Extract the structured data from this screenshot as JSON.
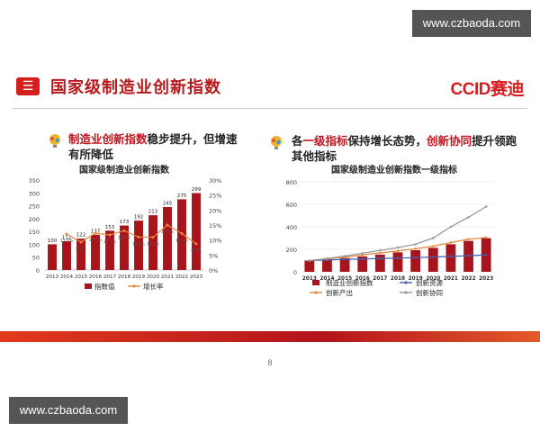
{
  "watermark": {
    "top": "www.czbaoda.com",
    "bottom": "www.czbaoda.com"
  },
  "header": {
    "badge": "☰",
    "title": "国家级制造业创新指数",
    "logo_text": "CCID",
    "logo_cn": "赛迪"
  },
  "left_point": {
    "hl": "制造业创新指数",
    "rest": "稳步提升，但增速",
    "line2": "有所降低"
  },
  "right_point": {
    "p1": "各",
    "hl1": "一级指标",
    "p2": "保持增长态势，",
    "hl2": "创新协同",
    "p3": "提升领跑",
    "line2": "其他指标"
  },
  "page_number": "8",
  "colors": {
    "red": "#c0141c",
    "bar_dark": "#a8141b",
    "orange": "#e6873a",
    "blue": "#3f5fb0",
    "gray": "#9a9a9a"
  },
  "chart_data": [
    {
      "type": "bar",
      "title": "国家级制造业创新指数",
      "categories": [
        "2013",
        "2014",
        "2015",
        "2016",
        "2017",
        "2018",
        "2019",
        "2020",
        "2021",
        "2022",
        "2023"
      ],
      "series": [
        {
          "name": "指数值",
          "type": "bar",
          "values": [
            100,
            112,
            122,
            137,
            153,
            173,
            192,
            213,
            245,
            275,
            299
          ]
        },
        {
          "name": "增长率",
          "type": "line",
          "axis": "right",
          "values": [
            null,
            12.0,
            9.3,
            12.3,
            11.7,
            13.1,
            11.0,
            10.9,
            15.0,
            12.2,
            8.7
          ]
        }
      ],
      "bar_labels": [
        "100",
        "112",
        "122",
        "137",
        "153",
        "173",
        "192",
        "213",
        "245",
        "275",
        "299"
      ],
      "line_labels": [
        "",
        "12.0%",
        "9.3%",
        "12.3%",
        "11.7%",
        "13.1%",
        "11.0%",
        "10.9%",
        "15.0%",
        "12.2%",
        "8.7%"
      ],
      "left_ticks": [
        "0",
        "50",
        "100",
        "150",
        "200",
        "250",
        "300",
        "350"
      ],
      "right_ticks": [
        "0%",
        "5%",
        "10%",
        "15%",
        "20%",
        "25%",
        "30%"
      ],
      "ylim": [
        0,
        350
      ],
      "y2lim": [
        0,
        30
      ],
      "legend": [
        "指数值",
        "增长率"
      ]
    },
    {
      "type": "bar",
      "title": "国家级制造业创新指数一级指标",
      "categories": [
        "2013",
        "2014",
        "2015",
        "2016",
        "2017",
        "2018",
        "2019",
        "2020",
        "2021",
        "2022",
        "2023"
      ],
      "series": [
        {
          "name": "制造业创新指数",
          "type": "bar",
          "values": [
            100,
            112,
            122,
            137,
            153,
            173,
            192,
            213,
            245,
            275,
            299
          ]
        },
        {
          "name": "创新资源",
          "type": "line",
          "values": [
            100,
            105,
            110,
            114,
            118,
            122,
            126,
            131,
            137,
            143,
            150
          ]
        },
        {
          "name": "创新产出",
          "type": "line",
          "values": [
            100,
            115,
            130,
            150,
            168,
            185,
            205,
            228,
            260,
            290,
            305
          ]
        },
        {
          "name": "创新协同",
          "type": "line",
          "values": [
            100,
            118,
            140,
            165,
            190,
            215,
            245,
            300,
            400,
            485,
            580
          ]
        }
      ],
      "left_ticks": [
        "0",
        "200",
        "400",
        "600",
        "800"
      ],
      "ylim": [
        0,
        800
      ],
      "legend": [
        "制造业创新指数",
        "创新资源",
        "创新产出",
        "创新协同"
      ]
    }
  ]
}
